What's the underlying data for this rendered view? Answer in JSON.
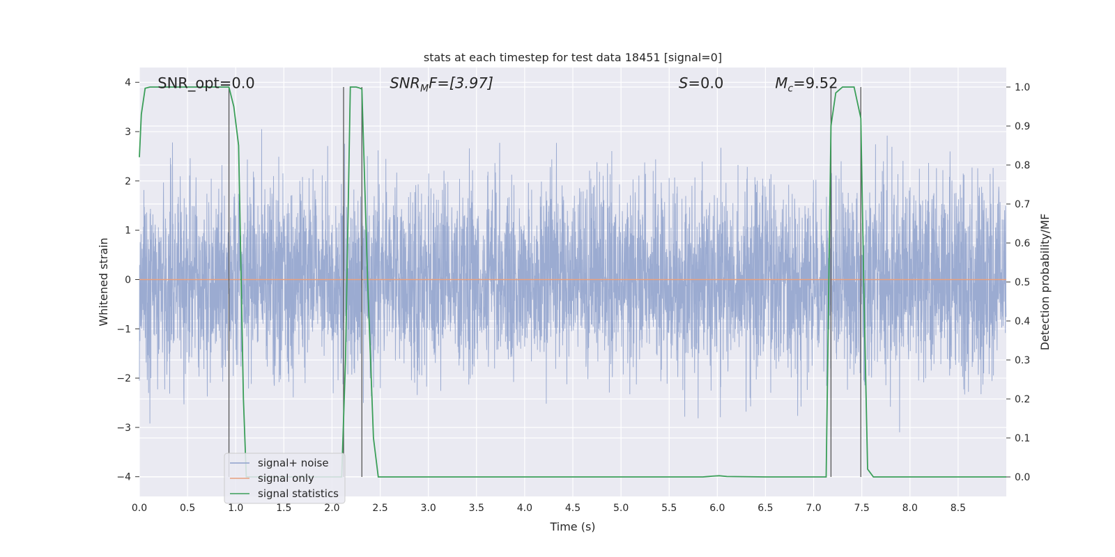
{
  "chart_data": {
    "type": "line",
    "title": "stats at each timestep for test data 18451 [signal=0]",
    "xlabel": "Time (s)",
    "ylabel": "Whitened strain",
    "y2label": "Detection probability/MF",
    "xlim": [
      0.0,
      9.0
    ],
    "ylim": [
      -4.4,
      4.3
    ],
    "y2lim": [
      -0.05,
      1.05
    ],
    "xticks": [
      "0.0",
      "0.5",
      "1.0",
      "1.5",
      "2.0",
      "2.5",
      "3.0",
      "3.5",
      "4.0",
      "4.5",
      "5.0",
      "5.5",
      "6.0",
      "6.5",
      "7.0",
      "7.5",
      "8.0",
      "8.5"
    ],
    "yticks": [
      "4",
      "3",
      "2",
      "1",
      "0",
      "−1",
      "−2",
      "−3",
      "−4"
    ],
    "y2ticks": [
      "1.0",
      "0.9",
      "0.8",
      "0.7",
      "0.6",
      "0.5",
      "0.4",
      "0.3",
      "0.2",
      "0.1",
      "0.0"
    ],
    "grid": true,
    "legend_position": "lower-left",
    "annotations": {
      "snr_opt": "SNR_opt=0.0",
      "snr_mf_prefix": "SNR",
      "snr_mf_sub": "M",
      "snr_mf_suffix": "F=[3.97]",
      "s_var": "S",
      "s_value": "=0.0",
      "mc_var": "M",
      "mc_sub": "c",
      "mc_value": "=9.52"
    },
    "vlines": [
      0.93,
      2.12,
      2.31,
      7.18,
      7.49
    ],
    "series": [
      {
        "name": "signal+ noise",
        "color": "#8da0cb",
        "description_values": "noise, amplitude range about -3.7 to 3.9",
        "sample_rate_hz": 512
      },
      {
        "name": "signal only",
        "color": "#e8a07e",
        "values_y": [
          0.0,
          0.0
        ]
      },
      {
        "name": "signal statistics",
        "color": "#3a9e58",
        "axis": "right",
        "x": [
          0.0,
          0.02,
          0.06,
          0.11,
          0.3,
          0.6,
          0.85,
          0.93,
          0.98,
          1.03,
          1.08,
          1.11,
          1.5,
          2.0,
          2.1,
          2.14,
          2.19,
          2.25,
          2.28,
          2.31,
          2.37,
          2.43,
          2.48,
          3.0,
          4.0,
          5.0,
          5.85,
          5.95,
          6.02,
          6.1,
          6.5,
          7.0,
          7.13,
          7.18,
          7.23,
          7.3,
          7.42,
          7.49,
          7.52,
          7.56,
          7.62,
          8.0,
          9.0
        ],
        "y": [
          0.82,
          0.93,
          0.997,
          1.0,
          1.0,
          1.0,
          1.0,
          1.0,
          0.95,
          0.85,
          0.2,
          0.0,
          0.0,
          0.0,
          0.0,
          0.3,
          1.0,
          1.0,
          0.998,
          0.995,
          0.5,
          0.1,
          0.0,
          0.0,
          0.0,
          0.0,
          0.0,
          0.002,
          0.003,
          0.001,
          0.0,
          0.0,
          0.0,
          0.9,
          0.985,
          1.0,
          1.0,
          0.92,
          0.5,
          0.02,
          0.0,
          0.0,
          0.0
        ]
      }
    ]
  }
}
